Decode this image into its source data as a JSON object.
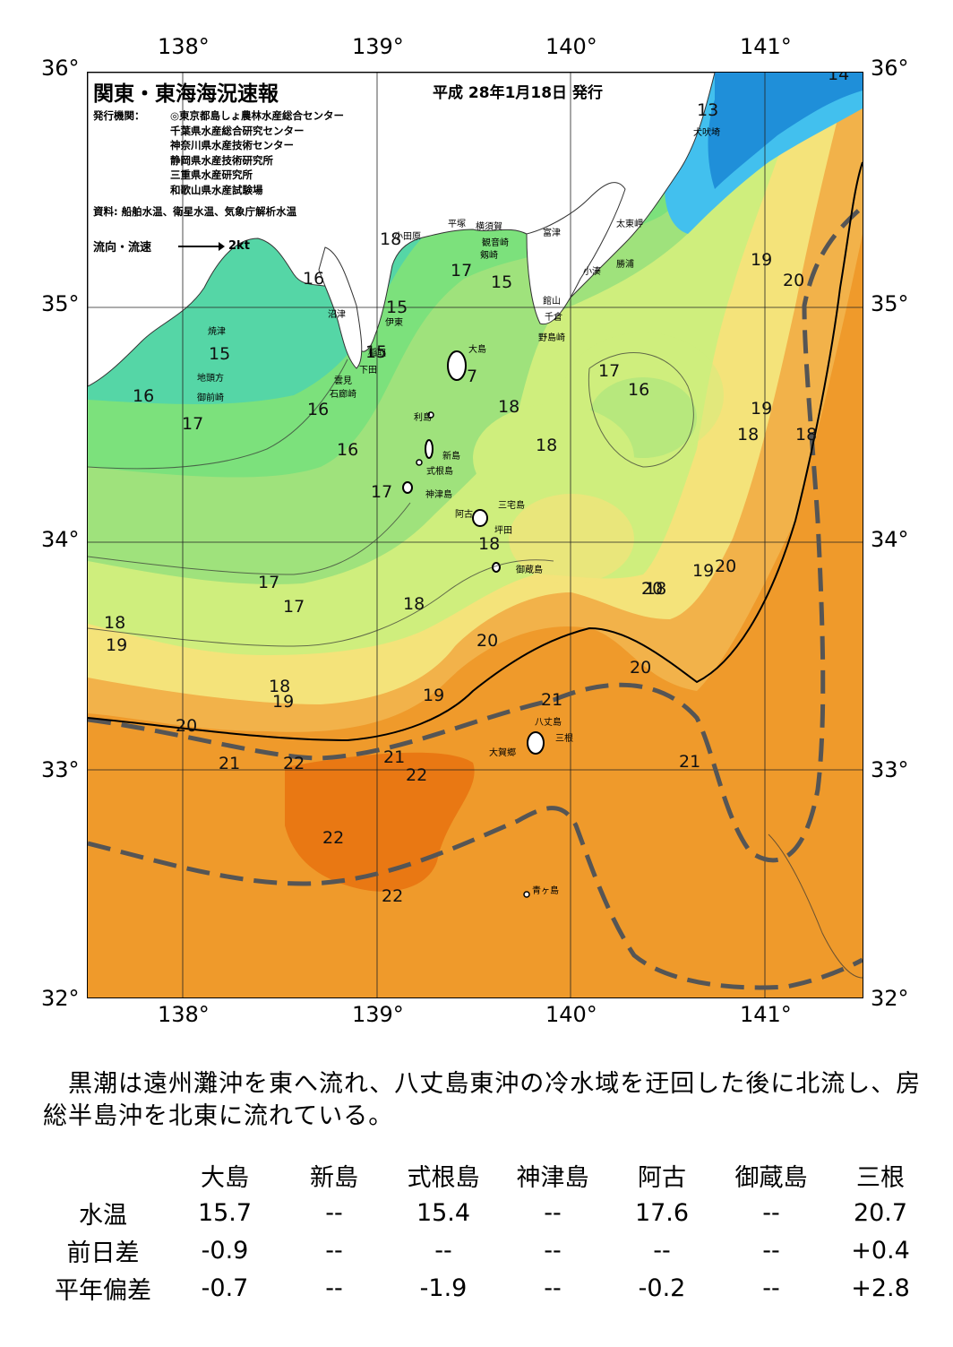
{
  "header": {
    "title": "関東・東海海況速報",
    "issue_date": "平成 28年1月18日 発行",
    "agency_label": "発行機関：",
    "agencies": [
      "◎東京都島しょ農林水産総合センター",
      "千葉県水産総合研究センター",
      "神奈川県水産技術センター",
      "静岡県水産技術研究所",
      "三重県水産研究所",
      "和歌山県水産試験場"
    ],
    "source": "資料: 船舶水温、衛星水温、気象庁解析水温",
    "flow_legend_label": "流向・流速",
    "flow_legend_speed": "2kt"
  },
  "axes": {
    "lon_labels": [
      "138°",
      "139°",
      "140°",
      "141°"
    ],
    "lat_labels": [
      "36°",
      "35°",
      "34°",
      "33°",
      "32°"
    ]
  },
  "map": {
    "colors": {
      "t13": "#1f8fd9",
      "t14": "#42c0ee",
      "t15": "#55d6a6",
      "t16": "#7ce17c",
      "t17": "#9fe27c",
      "t18": "#cfee7d",
      "t19": "#f4e37a",
      "t20": "#f2b24a",
      "t21": "#ef9a2b",
      "t22": "#e97813",
      "land": "#ffffff",
      "kuroshio": "#555555"
    },
    "temp_labels": [
      "14",
      "13",
      "18",
      "17",
      "15",
      "16",
      "15",
      "15",
      "15",
      "7",
      "16",
      "16",
      "17",
      "16",
      "16",
      "17",
      "18",
      "18",
      "17",
      "18",
      "19",
      "20",
      "19",
      "18",
      "20",
      "18",
      "19",
      "20",
      "18",
      "17",
      "17",
      "18",
      "18",
      "19",
      "20",
      "20",
      "18",
      "19",
      "19",
      "21",
      "20",
      "21",
      "22",
      "21",
      "22",
      "22",
      "21",
      "22"
    ],
    "place_names": [
      "犬吠埼",
      "太東岬",
      "勝浦",
      "小湊",
      "富津",
      "館山",
      "千倉",
      "野島崎",
      "平塚",
      "横須賀",
      "観音崎",
      "剱崎",
      "小田原",
      "沼津",
      "伊東",
      "稲取",
      "下田",
      "雲見",
      "石廊崎",
      "焼津",
      "地頭方",
      "御前崎",
      "大島",
      "利島",
      "新島",
      "式根島",
      "神津島",
      "三宅島",
      "阿古",
      "坪田",
      "御蔵島",
      "八丈島",
      "三根",
      "大賀郷",
      "青ヶ島"
    ]
  },
  "summary": "　黒潮は遠州灘沖を東へ流れ、八丈島東沖の冷水域を迂回した後に北流し、房総半島沖を北東に流れている。",
  "observations": {
    "stations": [
      "大島",
      "新島",
      "式根島",
      "神津島",
      "阿古",
      "御蔵島",
      "三根"
    ],
    "rows": [
      {
        "label": "水温",
        "values": [
          "15.7",
          "--",
          "15.4",
          "--",
          "17.6",
          "--",
          "20.7"
        ]
      },
      {
        "label": "前日差",
        "values": [
          "-0.9",
          "--",
          "--",
          "--",
          "--",
          "--",
          "+0.4"
        ]
      },
      {
        "label": "平年偏差",
        "values": [
          "-0.7",
          "--",
          "-1.9",
          "--",
          "-0.2",
          "--",
          "+2.8"
        ]
      }
    ]
  }
}
